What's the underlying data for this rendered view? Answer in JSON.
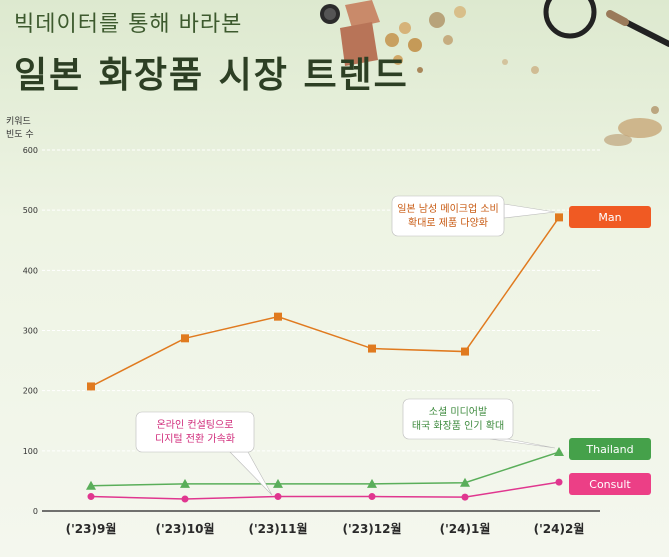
{
  "header": {
    "subtitle": "빅데이터를 통해 바라본",
    "title": "일본 화장품 시장 트렌드"
  },
  "y_unit_label": [
    "키워드",
    "빈도 수"
  ],
  "chart_data": {
    "type": "line",
    "title": "일본 화장품 시장 트렌드",
    "xlabel": "",
    "ylabel": "키워드 빈도 수",
    "ylim": [
      0,
      600
    ],
    "yticks": [
      0,
      100,
      200,
      300,
      400,
      500,
      600
    ],
    "grid": "horizontal",
    "categories": [
      "('23)9월",
      "('23)10월",
      "('23)11월",
      "('23)12월",
      "('24)1월",
      "('24)2월"
    ],
    "series": [
      {
        "name": "Man",
        "values": [
          207,
          287,
          323,
          270,
          265,
          488
        ],
        "color": "#e07a1f",
        "marker": "square",
        "label_color": "#f05a23"
      },
      {
        "name": "Thailand",
        "values": [
          42,
          45,
          45,
          45,
          47,
          98
        ],
        "color": "#5aae5a",
        "marker": "triangle",
        "label_color": "#45a14a"
      },
      {
        "name": "Consult",
        "values": [
          24,
          20,
          24,
          24,
          23,
          48
        ],
        "color": "#e0368f",
        "marker": "circle",
        "label_color": "#ec3f86"
      }
    ],
    "annotations": [
      {
        "lines": [
          "일본 남성 메이크업 소비",
          "확대로 제품 다양화"
        ],
        "color": "#c85a12",
        "target_series": 0,
        "target_index": 5
      },
      {
        "lines": [
          "소셜 미디어발",
          "태국 화장품 인기 확대"
        ],
        "color": "#3d8a3d",
        "target_series": 1,
        "target_index": 5
      },
      {
        "lines": [
          "온라인 컨설팅으로",
          "디지털 전환 가속화"
        ],
        "color": "#d02a7a",
        "target_series": 2,
        "target_index": 2
      }
    ]
  }
}
